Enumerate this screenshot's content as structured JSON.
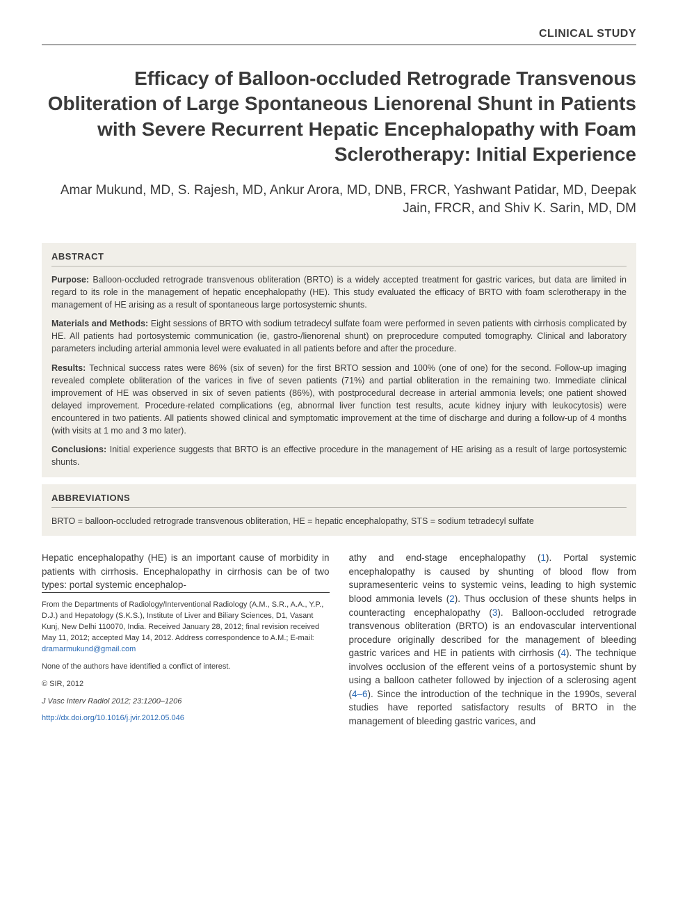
{
  "article_type": "CLINICAL STUDY",
  "title": "Efficacy of Balloon-occluded Retrograde Transvenous Obliteration of Large Spontaneous Lienorenal Shunt in Patients with Severe Recurrent Hepatic Encephalopathy with Foam Sclerotherapy: Initial Experience",
  "authors": "Amar Mukund, MD, S. Rajesh, MD, Ankur Arora, MD, DNB, FRCR, Yashwant Patidar, MD, Deepak Jain, FRCR, and Shiv K. Sarin, MD, DM",
  "abstract": {
    "heading": "ABSTRACT",
    "purpose_lead": "Purpose:",
    "purpose": " Balloon-occluded retrograde transvenous obliteration (BRTO) is a widely accepted treatment for gastric varices, but data are limited in regard to its role in the management of hepatic encephalopathy (HE). This study evaluated the efficacy of BRTO with foam sclerotherapy in the management of HE arising as a result of spontaneous large portosystemic shunts.",
    "methods_lead": "Materials and Methods:",
    "methods": " Eight sessions of BRTO with sodium tetradecyl sulfate foam were performed in seven patients with cirrhosis complicated by HE. All patients had portosystemic communication (ie, gastro-/lienorenal shunt) on preprocedure computed tomography. Clinical and laboratory parameters including arterial ammonia level were evaluated in all patients before and after the procedure.",
    "results_lead": "Results:",
    "results": " Technical success rates were 86% (six of seven) for the first BRTO session and 100% (one of one) for the second. Follow-up imaging revealed complete obliteration of the varices in five of seven patients (71%) and partial obliteration in the remaining two. Immediate clinical improvement of HE was observed in six of seven patients (86%), with postprocedural decrease in arterial ammonia levels; one patient showed delayed improvement. Procedure-related complications (eg, abnormal liver function test results, acute kidney injury with leukocytosis) were encountered in two patients. All patients showed clinical and symptomatic improvement at the time of discharge and during a follow-up of 4 months (with visits at 1 mo and 3 mo later).",
    "conclusions_lead": "Conclusions:",
    "conclusions": " Initial experience suggests that BRTO is an effective procedure in the management of HE arising as a result of large portosystemic shunts."
  },
  "abbreviations": {
    "heading": "ABBREVIATIONS",
    "text": "BRTO = balloon-occluded retrograde transvenous obliteration, HE = hepatic encephalopathy, STS = sodium tetradecyl sulfate"
  },
  "body": {
    "left_intro": "Hepatic encephalopathy (HE) is an important cause of morbidity in patients with cirrhosis. Encephalopathy in cirrhosis can be of two types: portal systemic encephalop-",
    "right_p1_a": "athy and end-stage encephalopathy (",
    "ref1": "1",
    "right_p1_b": "). Portal systemic encephalopathy is caused by shunting of blood flow from supramesenteric veins to systemic veins, leading to high systemic blood ammonia levels (",
    "ref2": "2",
    "right_p1_c": "). Thus occlusion of these shunts helps in counteracting encephalopathy (",
    "ref3": "3",
    "right_p1_d": "). Balloon-occluded retrograde transvenous obliteration (BRTO) is an endovascular interventional procedure originally described for the management of bleeding gastric varices and HE in patients with cirrhosis (",
    "ref4": "4",
    "right_p1_e": "). The technique involves occlusion of the efferent veins of a portosystemic shunt by using a balloon catheter followed by injection of a sclerosing agent (",
    "ref46": "4–6",
    "right_p1_f": "). Since the introduction of the technique in the 1990s, several studies have reported satisfactory results of BRTO in the management of bleeding gastric varices, and"
  },
  "footer": {
    "affil": "From the Departments of Radiology/Interventional Radiology (A.M., S.R., A.A., Y.P., D.J.) and Hepatology (S.K.S.), Institute of Liver and Biliary Sciences, D1, Vasant Kunj, New Delhi 110070, India. Received January 28, 2012; final revision received May 11, 2012; accepted May 14, 2012. Address correspondence to A.M.; E-mail: ",
    "email": "dramarmukund@gmail.com",
    "coi": "None of the authors have identified a conflict of interest.",
    "copyright": "© SIR, 2012",
    "citation": "J Vasc Interv Radiol 2012; 23:1200–1206",
    "doi": "http://dx.doi.org/10.1016/j.jvir.2012.05.046"
  },
  "colors": {
    "text": "#3a3a3a",
    "link": "#2a6ab5",
    "block_bg": "#f1efe9",
    "rule": "#b5b3ac"
  }
}
